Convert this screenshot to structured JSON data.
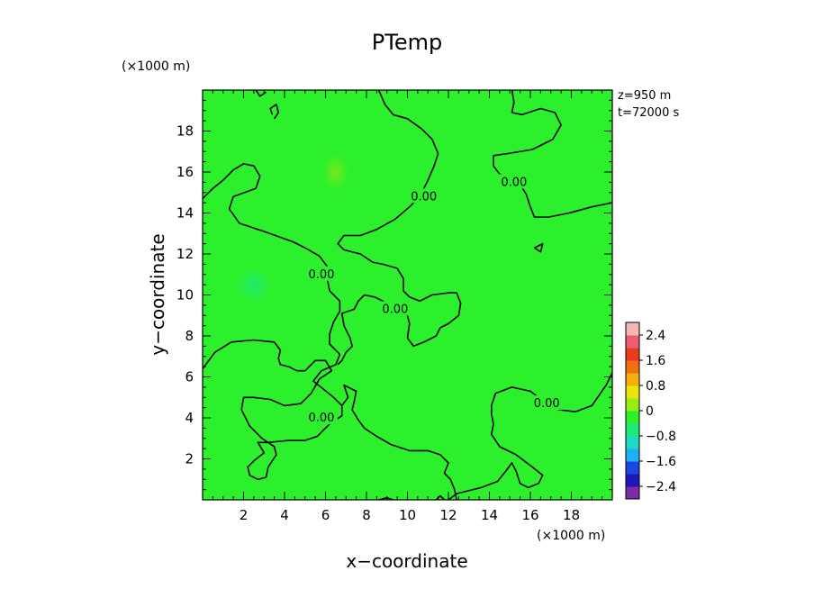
{
  "chart_data": {
    "type": "heatmap",
    "title": "PTemp",
    "xlabel": "x−coordinate",
    "ylabel": "y−coordinate",
    "x_unit": "(×1000 m)",
    "y_unit": "(×1000 m)",
    "xlim": [
      0,
      20
    ],
    "ylim": [
      0,
      20
    ],
    "x_ticks": [
      2,
      4,
      6,
      8,
      10,
      12,
      14,
      16,
      18
    ],
    "y_ticks": [
      2,
      4,
      6,
      8,
      10,
      12,
      14,
      16,
      18
    ],
    "info": [
      "z=950 m",
      "t=72000 s"
    ],
    "fill_value": 0.1,
    "anomalies": [
      {
        "x": 2.5,
        "y": 10.5,
        "value": -0.3
      },
      {
        "x": 6.5,
        "y": 16.0,
        "value": 0.3
      }
    ],
    "contour_value": 0.0,
    "contour_labels": [
      "0.00",
      "0.00",
      "0.00",
      "0.00",
      "0.00",
      "0.00"
    ],
    "contour_label_points": [
      {
        "x": 10.8,
        "y": 14.8
      },
      {
        "x": 15.2,
        "y": 15.5
      },
      {
        "x": 5.8,
        "y": 11.0
      },
      {
        "x": 9.4,
        "y": 9.3
      },
      {
        "x": 5.8,
        "y": 4.0
      },
      {
        "x": 16.8,
        "y": 4.7
      }
    ],
    "contours": [
      [
        [
          0,
          14.7
        ],
        [
          0.5,
          15.2
        ],
        [
          1.0,
          15.6
        ],
        [
          1.5,
          16.1
        ],
        [
          2.0,
          16.4
        ],
        [
          2.5,
          16.3
        ],
        [
          2.8,
          15.8
        ],
        [
          2.6,
          15.2
        ],
        [
          1.5,
          14.8
        ],
        [
          1.3,
          14.2
        ],
        [
          1.8,
          13.5
        ],
        [
          3.0,
          13.1
        ],
        [
          4.4,
          12.6
        ],
        [
          5.0,
          12.3
        ],
        [
          5.7,
          11.9
        ],
        [
          6.0,
          11.5
        ],
        [
          6.3,
          11.1
        ],
        [
          6.1,
          10.7
        ],
        [
          6.2,
          10.2
        ],
        [
          6.7,
          9.7
        ],
        [
          6.7,
          9.2
        ],
        [
          6.4,
          8.7
        ],
        [
          6.2,
          8.1
        ],
        [
          6.2,
          7.6
        ],
        [
          6.7,
          7.1
        ],
        [
          6.5,
          6.6
        ],
        [
          5.8,
          6.3
        ],
        [
          5.4,
          5.8
        ],
        [
          5.9,
          5.4
        ],
        [
          6.4,
          5.0
        ],
        [
          6.8,
          4.6
        ],
        [
          6.8,
          4.1
        ],
        [
          6.2,
          3.7
        ],
        [
          5.9,
          3.4
        ],
        [
          5.6,
          3.1
        ],
        [
          5.0,
          2.9
        ],
        [
          4.2,
          2.9
        ],
        [
          3.2,
          2.8
        ],
        [
          2.7,
          2.8
        ],
        [
          3.0,
          2.3
        ],
        [
          2.5,
          1.9
        ],
        [
          2.2,
          1.6
        ],
        [
          2.3,
          1.2
        ],
        [
          2.7,
          1.0
        ],
        [
          3.1,
          1.1
        ],
        [
          3.2,
          1.6
        ],
        [
          3.6,
          2.2
        ],
        [
          3.5,
          2.6
        ],
        [
          2.9,
          3.0
        ],
        [
          2.3,
          3.6
        ],
        [
          1.9,
          4.4
        ],
        [
          2.0,
          5.0
        ],
        [
          2.5,
          5.0
        ],
        [
          3.3,
          4.9
        ],
        [
          4.0,
          4.6
        ],
        [
          4.8,
          4.7
        ],
        [
          5.3,
          5.2
        ],
        [
          5.7,
          5.9
        ],
        [
          6.3,
          6.3
        ],
        [
          6.0,
          6.8
        ],
        [
          5.5,
          6.8
        ],
        [
          5.0,
          6.3
        ],
        [
          4.6,
          6.3
        ],
        [
          4.2,
          6.5
        ],
        [
          3.8,
          6.6
        ],
        [
          3.7,
          6.9
        ],
        [
          3.8,
          7.3
        ],
        [
          3.5,
          7.7
        ],
        [
          2.5,
          7.8
        ],
        [
          1.4,
          7.7
        ],
        [
          0.6,
          7.2
        ],
        [
          0,
          6.4
        ]
      ],
      [
        [
          8.6,
          20
        ],
        [
          8.9,
          19.3
        ],
        [
          9.3,
          18.8
        ],
        [
          10.0,
          18.6
        ],
        [
          10.7,
          18.1
        ],
        [
          11.2,
          17.6
        ],
        [
          11.5,
          16.9
        ],
        [
          11.3,
          16.3
        ],
        [
          11.0,
          15.6
        ],
        [
          10.8,
          15.2
        ],
        [
          10.6,
          14.8
        ],
        [
          10.1,
          14.3
        ],
        [
          9.4,
          13.7
        ],
        [
          8.5,
          13.2
        ],
        [
          7.7,
          12.9
        ],
        [
          6.9,
          12.9
        ],
        [
          6.6,
          12.5
        ],
        [
          6.9,
          12.2
        ],
        [
          7.7,
          12.0
        ],
        [
          8.3,
          11.6
        ],
        [
          8.8,
          11.5
        ],
        [
          9.5,
          11.3
        ],
        [
          9.8,
          10.8
        ],
        [
          9.8,
          10.2
        ],
        [
          10.1,
          9.9
        ],
        [
          10.6,
          9.7
        ],
        [
          11.2,
          10.0
        ],
        [
          12.0,
          10.1
        ],
        [
          12.4,
          10.1
        ],
        [
          12.6,
          9.6
        ],
        [
          12.5,
          9.0
        ],
        [
          12.0,
          8.6
        ],
        [
          11.6,
          8.4
        ],
        [
          11.4,
          8.0
        ],
        [
          10.8,
          7.7
        ],
        [
          10.3,
          7.5
        ],
        [
          10.0,
          7.9
        ],
        [
          10.1,
          8.6
        ],
        [
          10.0,
          9.0
        ],
        [
          9.0,
          9.6
        ],
        [
          8.4,
          9.9
        ],
        [
          7.9,
          10.0
        ],
        [
          7.6,
          9.7
        ],
        [
          7.4,
          9.3
        ],
        [
          6.8,
          9.1
        ],
        [
          6.9,
          8.5
        ],
        [
          7.2,
          7.9
        ],
        [
          7.3,
          7.5
        ],
        [
          7.0,
          7.2
        ],
        [
          6.8,
          6.8
        ],
        [
          6.6,
          6.6
        ]
      ],
      [
        [
          6.8,
          4.6
        ],
        [
          7.1,
          5.0
        ],
        [
          7.0,
          5.3
        ],
        [
          6.9,
          5.6
        ],
        [
          7.5,
          5.3
        ],
        [
          7.4,
          4.8
        ],
        [
          7.3,
          4.4
        ],
        [
          7.6,
          3.9
        ],
        [
          7.9,
          3.5
        ],
        [
          8.5,
          3.1
        ],
        [
          9.2,
          2.7
        ],
        [
          10.1,
          2.4
        ],
        [
          11.0,
          2.4
        ],
        [
          11.6,
          2.2
        ],
        [
          12.0,
          1.8
        ],
        [
          11.8,
          1.3
        ],
        [
          12.1,
          1.0
        ],
        [
          12.3,
          0.5
        ],
        [
          12.4,
          0
        ]
      ],
      [
        [
          15.1,
          20
        ],
        [
          15.2,
          19.4
        ],
        [
          15.1,
          18.9
        ],
        [
          15.6,
          18.8
        ],
        [
          16.5,
          19.1
        ],
        [
          17.2,
          18.9
        ],
        [
          17.5,
          18.3
        ],
        [
          17.1,
          17.6
        ],
        [
          16.1,
          17.1
        ],
        [
          14.9,
          16.9
        ],
        [
          14.2,
          16.8
        ],
        [
          14.2,
          16.3
        ],
        [
          14.5,
          15.9
        ],
        [
          15.0,
          15.7
        ],
        [
          15.5,
          15.4
        ],
        [
          15.8,
          14.9
        ],
        [
          16.0,
          14.3
        ],
        [
          16.2,
          13.8
        ],
        [
          16.9,
          13.8
        ],
        [
          17.9,
          14.0
        ],
        [
          19.0,
          14.3
        ],
        [
          20,
          14.5
        ]
      ],
      [
        [
          12.0,
          0
        ],
        [
          12.4,
          0.3
        ],
        [
          13.6,
          0.6
        ],
        [
          14.4,
          0.9
        ],
        [
          14.8,
          1.4
        ],
        [
          15.1,
          1.8
        ],
        [
          15.3,
          1.4
        ],
        [
          15.5,
          0.8
        ],
        [
          15.9,
          0.6
        ],
        [
          16.4,
          0.8
        ],
        [
          16.6,
          1.2
        ],
        [
          16.1,
          1.6
        ],
        [
          15.3,
          2.2
        ],
        [
          14.5,
          2.6
        ],
        [
          14.1,
          3.2
        ],
        [
          14.2,
          3.7
        ],
        [
          14.1,
          4.2
        ],
        [
          14.1,
          4.6
        ],
        [
          14.3,
          5.2
        ],
        [
          15.1,
          5.5
        ],
        [
          16.0,
          5.3
        ],
        [
          16.4,
          5.0
        ],
        [
          16.9,
          4.6
        ],
        [
          17.4,
          4.4
        ],
        [
          18.2,
          4.3
        ],
        [
          19.0,
          4.6
        ],
        [
          19.7,
          5.6
        ],
        [
          20,
          6.2
        ]
      ],
      [
        [
          2.6,
          20
        ],
        [
          2.8,
          19.7
        ],
        [
          3.1,
          19.9
        ]
      ],
      [
        [
          3.5,
          18.6
        ],
        [
          3.7,
          18.9
        ],
        [
          3.6,
          19.3
        ],
        [
          3.3,
          19.1
        ],
        [
          3.4,
          18.8
        ]
      ],
      [
        [
          16.2,
          12.3
        ],
        [
          16.6,
          12.5
        ],
        [
          16.5,
          12.1
        ],
        [
          16.2,
          12.3
        ]
      ],
      [
        [
          8.6,
          0
        ],
        [
          9.0,
          0.1
        ],
        [
          9.3,
          0
        ]
      ],
      [
        [
          11.4,
          0
        ],
        [
          11.6,
          0.2
        ],
        [
          11.8,
          0
        ]
      ]
    ],
    "colorbar": {
      "labels": [
        "2.4",
        "1.6",
        "0.8",
        "0",
        "−0.8",
        "−1.6",
        "−2.4"
      ],
      "label_values": [
        2.4,
        1.6,
        0.8,
        0,
        -0.8,
        -1.6,
        -2.4
      ],
      "min": -2.8,
      "max": 2.8,
      "colors": [
        "#7a2da6",
        "#2116b8",
        "#1a48e0",
        "#1eb0f0",
        "#1fd9c4",
        "#1ee876",
        "#2cf02c",
        "#98ee14",
        "#e8e40c",
        "#f2b00a",
        "#f07010",
        "#ea3a1e",
        "#ec5e6e",
        "#f4b6b6"
      ]
    }
  }
}
